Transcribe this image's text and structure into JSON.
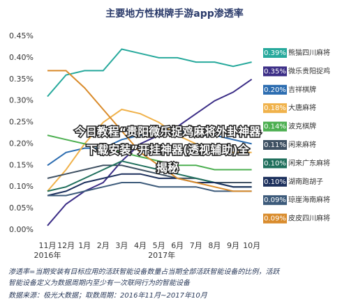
{
  "chart_data": {
    "type": "line",
    "title": "主要地方性棋牌手游app渗透率",
    "categories": [
      "11月",
      "12月",
      "1月",
      "2月",
      "3月",
      "4月",
      "5月",
      "6月",
      "7月",
      "8月",
      "9月",
      "10月"
    ],
    "year_labels": [
      "2016年",
      "2017年"
    ],
    "ylim": [
      0,
      0.45
    ],
    "yticks": [
      {
        "value": 0,
        "label": "0.00%"
      },
      {
        "value": 0.05,
        "label": "0.05%"
      },
      {
        "value": 0.1,
        "label": "0.10%"
      },
      {
        "value": 0.15,
        "label": "0.15%"
      },
      {
        "value": 0.2,
        "label": "0.20%"
      },
      {
        "value": 0.25,
        "label": "0.25%"
      },
      {
        "value": 0.3,
        "label": "0.30%"
      },
      {
        "value": 0.35,
        "label": "0.35%"
      },
      {
        "value": 0.4,
        "label": "0.40%"
      },
      {
        "value": 0.45,
        "label": "0.45%"
      }
    ],
    "grid": false,
    "series": [
      {
        "name": "熊猫四川麻将",
        "color": "#27a99c",
        "end_label": "0.39%",
        "values": [
          0.31,
          0.36,
          0.37,
          0.37,
          0.42,
          0.41,
          0.4,
          0.4,
          0.39,
          0.39,
          0.38,
          0.39
        ]
      },
      {
        "name": "微乐贵阳捉鸡",
        "color": "#3b2d86",
        "end_label": "0.35%",
        "values": [
          0.01,
          0.06,
          0.09,
          0.11,
          0.16,
          0.2,
          0.22,
          0.24,
          0.27,
          0.3,
          0.32,
          0.35
        ]
      },
      {
        "name": "吉祥棋牌",
        "color": "#2b6cb0",
        "end_label": "0.20%",
        "values": [
          0.15,
          0.18,
          0.19,
          0.19,
          0.21,
          0.22,
          0.23,
          0.23,
          0.22,
          0.22,
          0.21,
          0.2
        ]
      },
      {
        "name": "大唐麻将",
        "color": "#f0b24b",
        "end_label": "0.18%",
        "values": [
          0.09,
          0.14,
          0.2,
          0.25,
          0.28,
          0.27,
          0.25,
          0.22,
          0.2,
          0.19,
          0.18,
          0.18
        ]
      },
      {
        "name": "波克棋牌",
        "color": "#4caf50",
        "end_label": "0.14%",
        "values": [
          0.22,
          0.21,
          0.2,
          0.19,
          0.18,
          0.17,
          0.16,
          0.15,
          0.15,
          0.14,
          0.14,
          0.14
        ]
      },
      {
        "name": "闲来麻将",
        "color": "#3e5062",
        "end_label": "0.11%",
        "values": [
          0.12,
          0.13,
          0.14,
          0.15,
          0.15,
          0.14,
          0.13,
          0.12,
          0.12,
          0.11,
          0.11,
          0.11
        ]
      },
      {
        "name": "闲来广东麻将",
        "color": "#1f6f5c",
        "end_label": "0.10%",
        "values": [
          0.09,
          0.1,
          0.12,
          0.14,
          0.16,
          0.15,
          0.14,
          0.13,
          0.12,
          0.11,
          0.1,
          0.1
        ]
      },
      {
        "name": "湖南跑胡子",
        "color": "#1b2f5c",
        "end_label": "0.10%",
        "values": [
          0.08,
          0.09,
          0.11,
          0.12,
          0.13,
          0.13,
          0.12,
          0.12,
          0.11,
          0.11,
          0.1,
          0.1
        ]
      },
      {
        "name": "琼崖海南麻将",
        "color": "#3c5a7a",
        "end_label": "0.09%",
        "values": [
          0.08,
          0.08,
          0.09,
          0.1,
          0.11,
          0.11,
          0.1,
          0.1,
          0.1,
          0.09,
          0.09,
          0.09
        ]
      },
      {
        "name": "皮皮四川麻将",
        "color": "#d98b2b",
        "end_label": "0.09%",
        "values": [
          0.37,
          0.37,
          0.33,
          0.28,
          0.23,
          0.18,
          0.15,
          0.12,
          0.11,
          0.1,
          0.09,
          0.09
        ]
      }
    ],
    "overlay_lines": [
      "今日教程“贵阳微乐捉鸡麻将外卦神器",
      "下载安装”开挂神器(透视辅助)全",
      "揭秘"
    ],
    "note_lines": [
      "渗透率=当期安装有目标应用的活跃智能设备数量占当期全部活跃智能设备的比例，活跃",
      "智能设备定义为数据周期内至少有一次联网行为的智能设备"
    ],
    "source": "数据来源：极光大数据；取数周期：2016年11月~2017年10月"
  }
}
